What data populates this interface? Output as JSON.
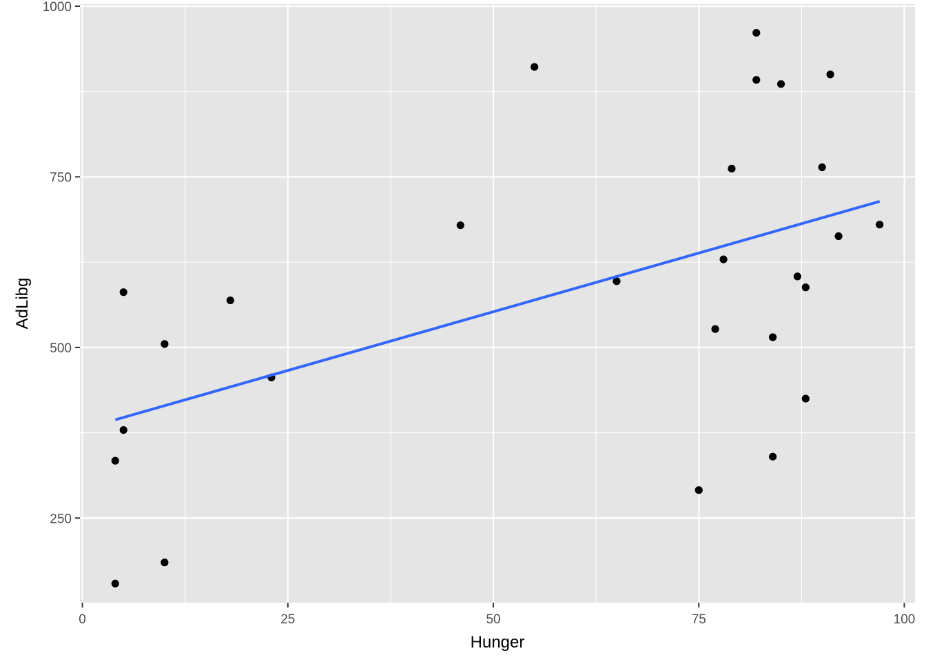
{
  "chart_data": {
    "type": "scatter",
    "title": "",
    "xlabel": "Hunger",
    "ylabel": "AdLibg",
    "xlim": [
      -0.3,
      101.3
    ],
    "ylim": [
      126,
      1003
    ],
    "x_ticks": [
      0,
      25,
      50,
      75,
      100
    ],
    "x_minor": [
      12.5,
      37.5,
      62.5,
      87.5
    ],
    "y_ticks": [
      250,
      500,
      750,
      1000
    ],
    "y_minor": [
      125,
      375,
      625,
      875
    ],
    "x_tick_labels": [
      "0",
      "25",
      "50",
      "75",
      "100"
    ],
    "y_tick_labels": [
      "250",
      "500",
      "750",
      "1000"
    ],
    "grid": true,
    "background": "#e5e5e5",
    "point_color": "#000000",
    "points": [
      {
        "x": 4,
        "y": 154
      },
      {
        "x": 4,
        "y": 334
      },
      {
        "x": 5,
        "y": 379
      },
      {
        "x": 5,
        "y": 581
      },
      {
        "x": 10,
        "y": 185
      },
      {
        "x": 10,
        "y": 505
      },
      {
        "x": 18,
        "y": 569
      },
      {
        "x": 23,
        "y": 456
      },
      {
        "x": 46,
        "y": 679
      },
      {
        "x": 55,
        "y": 911
      },
      {
        "x": 65,
        "y": 597
      },
      {
        "x": 75,
        "y": 291
      },
      {
        "x": 77,
        "y": 527
      },
      {
        "x": 78,
        "y": 629
      },
      {
        "x": 79,
        "y": 762
      },
      {
        "x": 82,
        "y": 961
      },
      {
        "x": 82,
        "y": 892
      },
      {
        "x": 84,
        "y": 515
      },
      {
        "x": 84,
        "y": 340
      },
      {
        "x": 85,
        "y": 886
      },
      {
        "x": 87,
        "y": 604
      },
      {
        "x": 88,
        "y": 588
      },
      {
        "x": 88,
        "y": 425
      },
      {
        "x": 90,
        "y": 764
      },
      {
        "x": 91,
        "y": 900
      },
      {
        "x": 92,
        "y": 663
      },
      {
        "x": 97,
        "y": 680
      }
    ],
    "fit_line": {
      "method": "lm",
      "color": "#3366ff",
      "start": {
        "x": 4,
        "y": 394
      },
      "end": {
        "x": 97,
        "y": 714
      }
    }
  }
}
